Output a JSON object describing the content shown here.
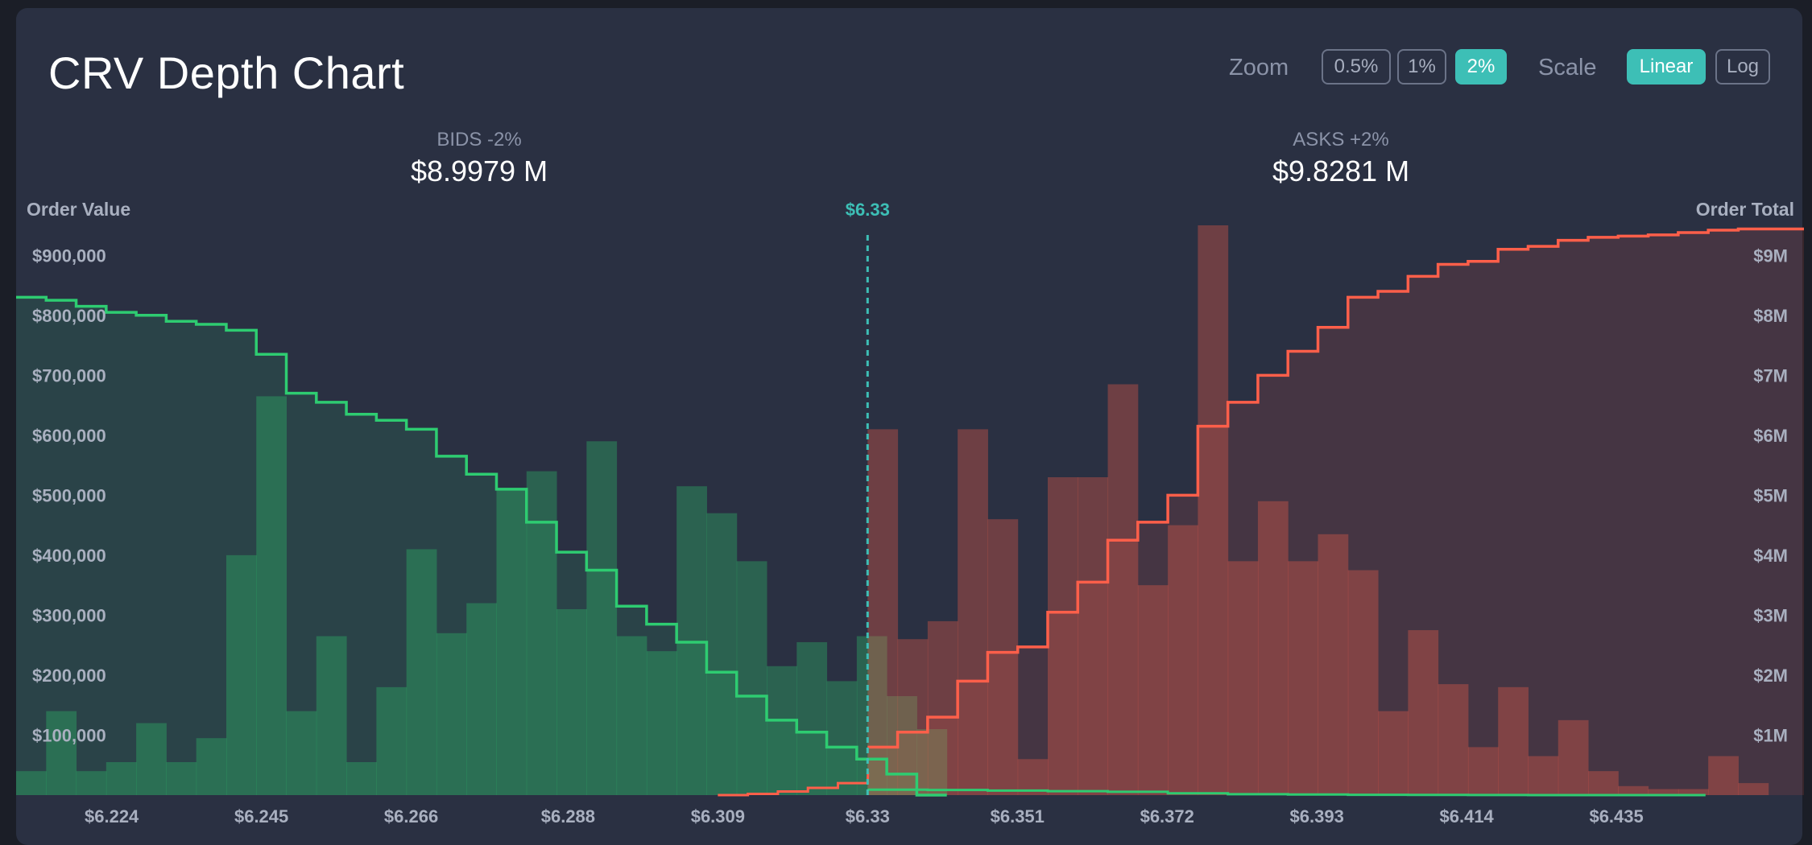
{
  "title": "CRV Depth Chart",
  "controls": {
    "zoom_label": "Zoom",
    "zoom_options": [
      "0.5%",
      "1%",
      "2%"
    ],
    "zoom_selected": "2%",
    "scale_label": "Scale",
    "scale_options": [
      "Linear",
      "Log"
    ],
    "scale_selected": "Linear"
  },
  "summary": {
    "bids_label": "BIDS -2%",
    "bids_value": "$8.9979 M",
    "asks_label": "ASKS +2%",
    "asks_value": "$9.8281 M"
  },
  "colors": {
    "bid": "#2ecc71",
    "ask": "#ff5f4a",
    "mid": "#3dbfb6",
    "panel": "#2a3042"
  },
  "chart_data": {
    "type": "depth",
    "title": "CRV Depth Chart",
    "mid_price": 6.33,
    "mid_label": "$6.33",
    "left_axis_title": "Order Value",
    "right_axis_title": "Order Total",
    "xlim": [
      6.2106,
      6.4613
    ],
    "left_ylim": [
      0,
      950000
    ],
    "right_ylim": [
      0,
      9500000
    ],
    "x_ticks": [
      6.224,
      6.245,
      6.266,
      6.288,
      6.309,
      6.33,
      6.351,
      6.372,
      6.393,
      6.414,
      6.435
    ],
    "x_tick_labels": [
      "$6.224",
      "$6.245",
      "$6.266",
      "$6.288",
      "$6.309",
      "$6.33",
      "$6.351",
      "$6.372",
      "$6.393",
      "$6.414",
      "$6.435"
    ],
    "left_ticks": [
      100000,
      200000,
      300000,
      400000,
      500000,
      600000,
      700000,
      800000,
      900000
    ],
    "left_tick_labels": [
      "$100,000",
      "$200,000",
      "$300,000",
      "$400,000",
      "$500,000",
      "$600,000",
      "$700,000",
      "$800,000",
      "$900,000"
    ],
    "right_ticks": [
      1000000,
      2000000,
      3000000,
      4000000,
      5000000,
      6000000,
      7000000,
      8000000,
      9000000
    ],
    "right_tick_labels": [
      "$1M",
      "$2M",
      "$3M",
      "$4M",
      "$5M",
      "$6M",
      "$7M",
      "$8M",
      "$9M"
    ],
    "bin_width": 0.00421,
    "bids": {
      "bin_start": 6.2106,
      "values": [
        40000,
        140000,
        40000,
        55000,
        120000,
        55000,
        95000,
        400000,
        665000,
        140000,
        265000,
        55000,
        180000,
        410000,
        270000,
        320000,
        510000,
        540000,
        310000,
        590000,
        265000,
        240000,
        515000,
        470000,
        390000,
        215000,
        255000,
        190000,
        265000,
        165000,
        110000
      ],
      "cumulative_left": [
        830000,
        825000,
        815000,
        805000,
        800000,
        790000,
        785000,
        775000,
        735000,
        670000,
        655000,
        635000,
        625000,
        610000,
        565000,
        535000,
        510000,
        455000,
        405000,
        375000,
        315000,
        285000,
        255000,
        205000,
        165000,
        125000,
        105000,
        80000,
        60000,
        35000,
        0
      ]
    },
    "asks": {
      "bin_start": 6.33,
      "values": [
        610000,
        260000,
        290000,
        610000,
        460000,
        60000,
        530000,
        530000,
        685000,
        350000,
        450000,
        950000,
        390000,
        490000,
        390000,
        435000,
        375000,
        140000,
        275000,
        185000,
        80000,
        180000,
        65000,
        125000,
        40000,
        15000,
        10000,
        10000,
        65000,
        20000
      ],
      "cumulative": [
        800000,
        1050000,
        1300000,
        1900000,
        2380000,
        2470000,
        3050000,
        3550000,
        4250000,
        4550000,
        5000000,
        6150000,
        6550000,
        7000000,
        7400000,
        7800000,
        8300000,
        8400000,
        8650000,
        8850000,
        8900000,
        9100000,
        9150000,
        9250000,
        9300000,
        9320000,
        9340000,
        9380000,
        9420000,
        9440000
      ]
    }
  }
}
